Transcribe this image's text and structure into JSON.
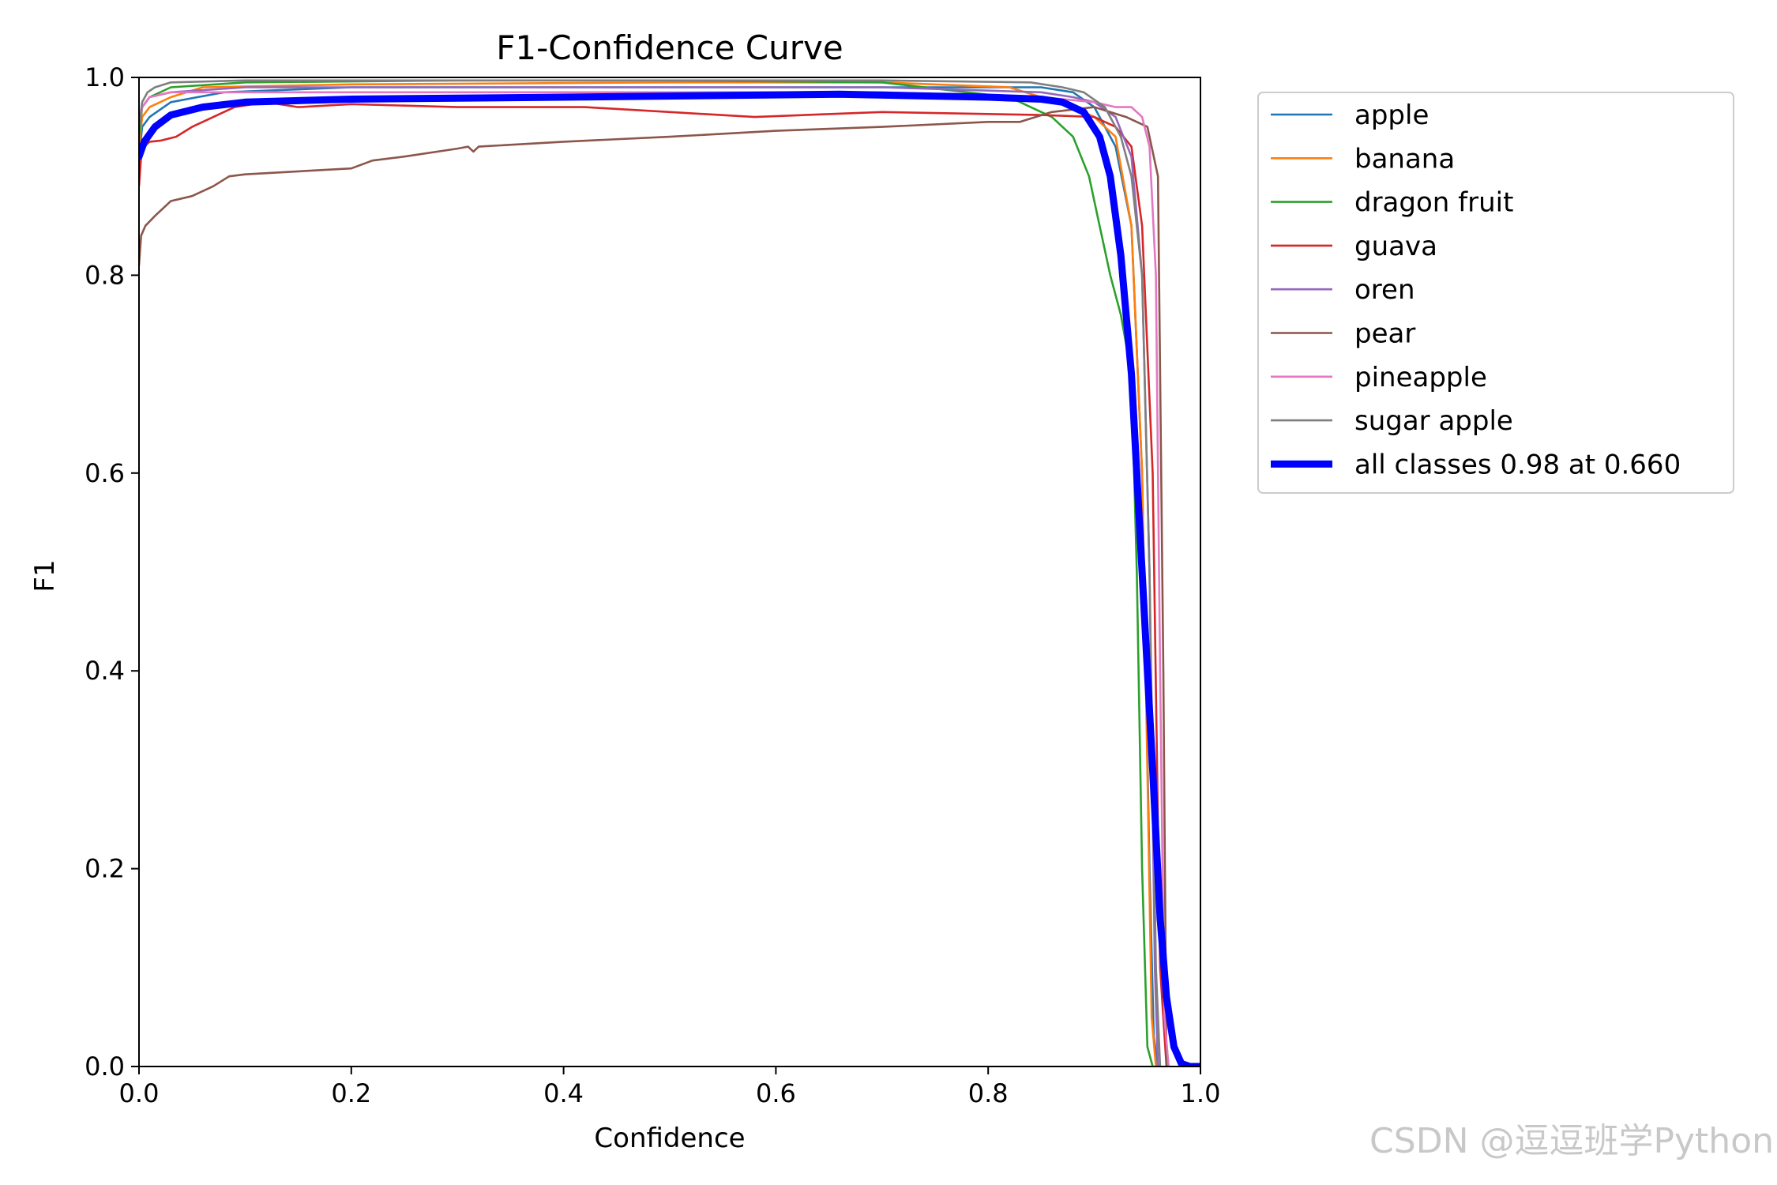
{
  "chart_data": {
    "type": "line",
    "title": "F1-Confidence Curve",
    "xlabel": "Confidence",
    "ylabel": "F1",
    "xlim": [
      0.0,
      1.0
    ],
    "ylim": [
      0.0,
      1.0
    ],
    "xticks": [
      "0.0",
      "0.2",
      "0.4",
      "0.6",
      "0.8",
      "1.0"
    ],
    "yticks": [
      "0.0",
      "0.2",
      "0.4",
      "0.6",
      "0.8",
      "1.0"
    ],
    "grid": false,
    "legend_position": "outside-top-right",
    "series": [
      {
        "name": "apple",
        "color": "#1f77b4",
        "width": "thin",
        "x": [
          0.0,
          0.003,
          0.01,
          0.03,
          0.08,
          0.2,
          0.5,
          0.7,
          0.85,
          0.88,
          0.9,
          0.92,
          0.935,
          0.945,
          0.952,
          0.956,
          0.96
        ],
        "y": [
          0.92,
          0.95,
          0.96,
          0.975,
          0.985,
          0.99,
          0.99,
          0.99,
          0.99,
          0.985,
          0.97,
          0.93,
          0.85,
          0.6,
          0.2,
          0.03,
          0.0
        ]
      },
      {
        "name": "banana",
        "color": "#ff7f0e",
        "width": "thin",
        "x": [
          0.0,
          0.003,
          0.01,
          0.03,
          0.06,
          0.2,
          0.5,
          0.7,
          0.82,
          0.85,
          0.88,
          0.9,
          0.92,
          0.935,
          0.945,
          0.95,
          0.954,
          0.958
        ],
        "y": [
          0.93,
          0.96,
          0.97,
          0.98,
          0.99,
          0.993,
          0.995,
          0.995,
          0.99,
          0.98,
          0.97,
          0.96,
          0.94,
          0.85,
          0.6,
          0.3,
          0.05,
          0.0
        ]
      },
      {
        "name": "dragon fruit",
        "color": "#2ca02c",
        "width": "thin",
        "x": [
          0.0,
          0.003,
          0.01,
          0.03,
          0.1,
          0.3,
          0.5,
          0.7,
          0.82,
          0.86,
          0.88,
          0.895,
          0.905,
          0.915,
          0.925,
          0.935,
          0.94,
          0.945,
          0.95,
          0.955
        ],
        "y": [
          0.94,
          0.97,
          0.98,
          0.99,
          0.995,
          0.997,
          0.997,
          0.995,
          0.98,
          0.96,
          0.94,
          0.9,
          0.85,
          0.8,
          0.76,
          0.7,
          0.5,
          0.2,
          0.02,
          0.0
        ]
      },
      {
        "name": "guava",
        "color": "#d62728",
        "width": "thin",
        "x": [
          0.0,
          0.002,
          0.005,
          0.01,
          0.02,
          0.035,
          0.05,
          0.07,
          0.09,
          0.12,
          0.15,
          0.2,
          0.3,
          0.42,
          0.5,
          0.58,
          0.7,
          0.85,
          0.9,
          0.92,
          0.935,
          0.945,
          0.955,
          0.962,
          0.968
        ],
        "y": [
          0.89,
          0.92,
          0.93,
          0.935,
          0.936,
          0.94,
          0.95,
          0.96,
          0.97,
          0.975,
          0.97,
          0.973,
          0.97,
          0.97,
          0.965,
          0.96,
          0.965,
          0.962,
          0.96,
          0.95,
          0.93,
          0.85,
          0.6,
          0.1,
          0.0
        ]
      },
      {
        "name": "oren",
        "color": "#9467bd",
        "width": "thin",
        "x": [
          0.0,
          0.003,
          0.01,
          0.03,
          0.1,
          0.3,
          0.5,
          0.7,
          0.85,
          0.88,
          0.9,
          0.92,
          0.935,
          0.945,
          0.952,
          0.957,
          0.96
        ],
        "y": [
          0.95,
          0.97,
          0.98,
          0.985,
          0.99,
          0.99,
          0.99,
          0.99,
          0.985,
          0.98,
          0.975,
          0.96,
          0.92,
          0.8,
          0.5,
          0.1,
          0.0
        ]
      },
      {
        "name": "pear",
        "color": "#8c564b",
        "width": "thin",
        "x": [
          0.0,
          0.002,
          0.006,
          0.015,
          0.03,
          0.05,
          0.07,
          0.085,
          0.1,
          0.15,
          0.2,
          0.22,
          0.25,
          0.3,
          0.31,
          0.315,
          0.32,
          0.4,
          0.5,
          0.6,
          0.7,
          0.8,
          0.83,
          0.86,
          0.9,
          0.93,
          0.95,
          0.96,
          0.965,
          0.968
        ],
        "y": [
          0.81,
          0.84,
          0.85,
          0.86,
          0.875,
          0.88,
          0.89,
          0.9,
          0.902,
          0.905,
          0.908,
          0.916,
          0.92,
          0.928,
          0.93,
          0.925,
          0.93,
          0.935,
          0.94,
          0.946,
          0.95,
          0.955,
          0.955,
          0.965,
          0.97,
          0.96,
          0.95,
          0.9,
          0.4,
          0.0
        ]
      },
      {
        "name": "pineapple",
        "color": "#e377c2",
        "width": "thin",
        "x": [
          0.0,
          0.003,
          0.01,
          0.03,
          0.1,
          0.3,
          0.5,
          0.7,
          0.85,
          0.9,
          0.92,
          0.935,
          0.945,
          0.952,
          0.958,
          0.962,
          0.966,
          0.97
        ],
        "y": [
          0.95,
          0.97,
          0.98,
          0.985,
          0.985,
          0.985,
          0.985,
          0.985,
          0.98,
          0.975,
          0.97,
          0.97,
          0.96,
          0.93,
          0.8,
          0.4,
          0.05,
          0.0
        ]
      },
      {
        "name": "sugar apple",
        "color": "#7f7f7f",
        "width": "thin",
        "x": [
          0.0,
          0.003,
          0.008,
          0.015,
          0.03,
          0.1,
          0.3,
          0.5,
          0.7,
          0.84,
          0.87,
          0.89,
          0.91,
          0.925,
          0.935,
          0.945,
          0.952,
          0.958,
          0.962
        ],
        "y": [
          0.95,
          0.975,
          0.985,
          0.99,
          0.995,
          0.997,
          0.997,
          0.997,
          0.997,
          0.995,
          0.99,
          0.985,
          0.97,
          0.94,
          0.9,
          0.8,
          0.5,
          0.1,
          0.0
        ]
      },
      {
        "name": "all classes 0.98 at 0.660",
        "color": "#0000ff",
        "width": "thick",
        "x": [
          0.0,
          0.005,
          0.015,
          0.03,
          0.06,
          0.1,
          0.2,
          0.4,
          0.66,
          0.8,
          0.85,
          0.87,
          0.89,
          0.905,
          0.915,
          0.925,
          0.935,
          0.945,
          0.955,
          0.962,
          0.968,
          0.975,
          0.982,
          0.99,
          1.0
        ],
        "y": [
          0.92,
          0.935,
          0.95,
          0.962,
          0.97,
          0.975,
          0.978,
          0.98,
          0.983,
          0.98,
          0.978,
          0.975,
          0.965,
          0.94,
          0.9,
          0.82,
          0.7,
          0.5,
          0.3,
          0.15,
          0.07,
          0.02,
          0.003,
          0.0,
          0.0
        ]
      }
    ]
  },
  "watermark": "CSDN @逗逗班学Python"
}
